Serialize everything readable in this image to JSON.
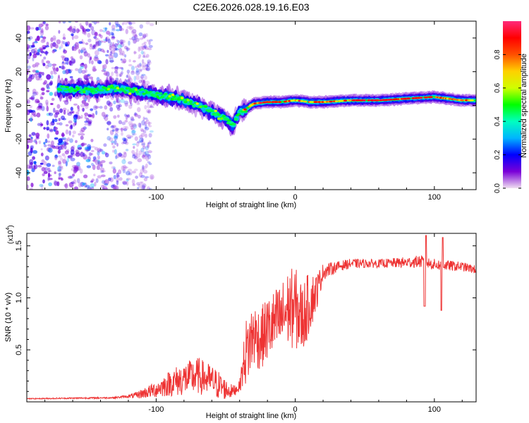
{
  "title": "C2E6.2026.028.19.16.E03",
  "chart_data": [
    {
      "type": "heatmap",
      "xlabel": "Height of straight line (km)",
      "ylabel": "Frequency (Hz)",
      "xlim": [
        -193,
        130
      ],
      "ylim": [
        -50,
        50
      ],
      "xticks": [
        -100,
        0,
        100
      ],
      "xtick_labels": [
        "-100",
        "0",
        "100"
      ],
      "yticks": [
        -40,
        -20,
        0,
        20,
        40
      ],
      "ytick_labels": [
        "-40",
        "-20",
        "0",
        "20",
        "40"
      ],
      "colorbar": {
        "label": "Normalized spectral amplitude",
        "range": [
          0,
          1
        ],
        "ticks": [
          0,
          0.2,
          0.4,
          0.6,
          0.8
        ],
        "tick_labels": [
          "0.0",
          "0.2",
          "0.4",
          "0.6",
          "0.8"
        ],
        "colors": [
          "#f0e0f0",
          "#7a00d8",
          "#0000ff",
          "#00b4ff",
          "#00ffc0",
          "#00ff00",
          "#d0ff00",
          "#ffd000",
          "#ff5000",
          "#ff0000",
          "#ff2a7a"
        ]
      },
      "ridge": {
        "x": [
          -170,
          -150,
          -130,
          -110,
          -100,
          -90,
          -80,
          -70,
          -60,
          -50,
          -45,
          -40,
          -35,
          -30,
          -20,
          -10,
          0,
          10,
          20,
          40,
          60,
          80,
          100,
          120,
          130
        ],
        "frequency": [
          10,
          9,
          10,
          8,
          6,
          5,
          3,
          0,
          -4,
          -8,
          -12,
          -4,
          -2,
          1,
          2,
          2,
          3,
          2,
          2,
          3,
          3,
          4,
          5,
          3,
          3
        ]
      },
      "noise_region_x": [
        -193,
        -115
      ]
    },
    {
      "type": "line",
      "xlabel": "Height of straight line (km)",
      "ylabel": "SNR (10 * v/v)",
      "exponent_label": "(x10",
      "exponent_power": "4",
      "exponent_close": ")",
      "xlim": [
        -193,
        130
      ],
      "ylim": [
        0,
        1.62
      ],
      "xticks": [
        -100,
        0,
        100
      ],
      "xtick_labels": [
        "-100",
        "0",
        "100"
      ],
      "yticks": [
        0.5,
        1.0,
        1.5
      ],
      "ytick_labels": [
        "0.5",
        "1.0",
        "1.5"
      ],
      "color": "#ee3333",
      "envelope": {
        "x": [
          -193,
          -130,
          -115,
          -100,
          -90,
          -80,
          -70,
          -60,
          -50,
          -45,
          -40,
          -36,
          -30,
          -25,
          -20,
          -15,
          -10,
          -5,
          0,
          5,
          10,
          15,
          20,
          30,
          40,
          60,
          80,
          90,
          100,
          110,
          120,
          130
        ],
        "y": [
          0.03,
          0.04,
          0.06,
          0.12,
          0.18,
          0.22,
          0.25,
          0.2,
          0.12,
          0.1,
          0.15,
          0.45,
          0.65,
          0.6,
          0.7,
          0.75,
          0.8,
          0.9,
          0.9,
          0.8,
          0.95,
          1.05,
          1.25,
          1.3,
          1.33,
          1.33,
          1.34,
          1.35,
          1.32,
          1.31,
          1.3,
          1.27
        ]
      },
      "noise_amplitude": {
        "x": [
          -193,
          -130,
          -120,
          -100,
          -85,
          -70,
          -55,
          -45,
          -40,
          -35,
          -25,
          -10,
          0,
          10,
          20,
          30,
          60,
          90,
          130
        ],
        "y": [
          0.005,
          0.008,
          0.015,
          0.08,
          0.15,
          0.18,
          0.14,
          0.06,
          0.05,
          0.35,
          0.3,
          0.35,
          0.4,
          0.3,
          0.08,
          0.05,
          0.04,
          0.06,
          0.04
        ]
      }
    }
  ]
}
